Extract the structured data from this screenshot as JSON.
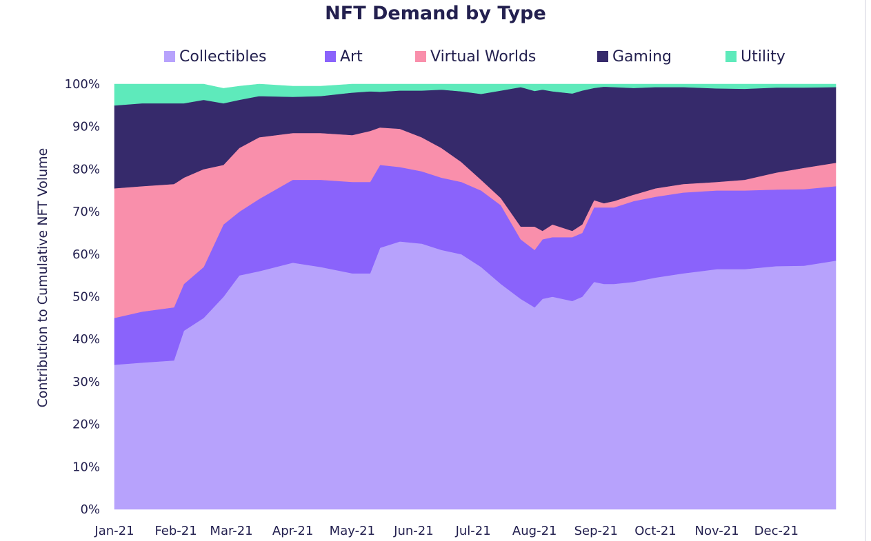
{
  "chart_data": {
    "type": "area",
    "stacked": true,
    "normalized_percent": true,
    "title": "NFT Demand by Type",
    "xlabel": "",
    "ylabel": "Contribution to Cumulative NFT Volume",
    "ylim": [
      0,
      100
    ],
    "y_ticks": [
      "0%",
      "10%",
      "20%",
      "30%",
      "40%",
      "50%",
      "60%",
      "70%",
      "80%",
      "90%",
      "100%"
    ],
    "x_tick_labels": [
      "Jan-21",
      "Feb-21",
      "Mar-21",
      "Apr-21",
      "May-21",
      "Jun-21",
      "Jul-21",
      "Aug-21",
      "Sep-21",
      "Oct-21",
      "Nov-21",
      "Dec-21"
    ],
    "legend_position": "top",
    "grid": false,
    "x": [
      "2021-01-01",
      "2021-01-15",
      "2021-01-31",
      "2021-02-05",
      "2021-02-15",
      "2021-02-25",
      "2021-03-05",
      "2021-03-15",
      "2021-04-01",
      "2021-04-15",
      "2021-05-01",
      "2021-05-10",
      "2021-05-15",
      "2021-05-25",
      "2021-06-05",
      "2021-06-15",
      "2021-06-25",
      "2021-07-05",
      "2021-07-15",
      "2021-07-25",
      "2021-08-01",
      "2021-08-05",
      "2021-08-10",
      "2021-08-20",
      "2021-08-25",
      "2021-08-31",
      "2021-09-05",
      "2021-09-10",
      "2021-09-20",
      "2021-10-01",
      "2021-10-15",
      "2021-11-01",
      "2021-11-15",
      "2021-12-01",
      "2021-12-15",
      "2021-12-31"
    ],
    "series": [
      {
        "name": "Collectibles",
        "color": "#b7a2fc",
        "values": [
          34,
          34.5,
          35,
          42,
          45,
          50,
          55,
          56,
          58,
          57,
          55.5,
          55.5,
          61.5,
          63,
          62.5,
          61,
          60,
          57,
          53,
          49.5,
          47.5,
          49.5,
          50,
          49,
          50,
          53.5,
          53,
          53,
          53.5,
          54.5,
          55.5,
          56.5,
          56.5,
          57.2,
          57.3,
          58.5
        ]
      },
      {
        "name": "Art",
        "color": "#8a63fb",
        "values": [
          11,
          12,
          12.5,
          11,
          12,
          17,
          15,
          17,
          19.5,
          20.5,
          21.5,
          21.5,
          19.5,
          17.5,
          17,
          17,
          17,
          18,
          18.5,
          14,
          13.5,
          14,
          14,
          15,
          15,
          17.5,
          18,
          18,
          19,
          19,
          19,
          18.5,
          18.5,
          18,
          18,
          17.5
        ]
      },
      {
        "name": "Virtual Worlds",
        "color": "#f98fab",
        "values": [
          30.5,
          29.5,
          29,
          25,
          23,
          14,
          15,
          14.5,
          11,
          11,
          11,
          12,
          8.8,
          9,
          8,
          7,
          4.7,
          2.5,
          1.7,
          3,
          5.5,
          2,
          3,
          1.5,
          2,
          1.7,
          1,
          1.5,
          1.5,
          2,
          2,
          2,
          2.5,
          4,
          5,
          5.5
        ]
      },
      {
        "name": "Gaming",
        "color": "#362a6b",
        "values": [
          19.5,
          19.5,
          19,
          17.5,
          16.3,
          14.5,
          11.3,
          9.7,
          8.5,
          8.7,
          10,
          9.3,
          8.4,
          9,
          11,
          13.7,
          16.6,
          20.2,
          25.3,
          32.8,
          31.9,
          33.2,
          31.3,
          32.3,
          31.5,
          26.4,
          27.4,
          26.8,
          25.1,
          23.8,
          22.8,
          22,
          21.4,
          20,
          18.9,
          17.8
        ]
      },
      {
        "name": "Utility",
        "color": "#5eeabb",
        "values": [
          5,
          4.5,
          4.5,
          4.5,
          3.7,
          3.5,
          3.2,
          2.8,
          2.5,
          2.3,
          2,
          1.7,
          1.8,
          1.5,
          1.5,
          1.3,
          1.7,
          2.3,
          1.5,
          0.7,
          1.6,
          1.3,
          1.7,
          2.2,
          1.5,
          0.9,
          0.6,
          0.7,
          0.9,
          0.7,
          0.7,
          1,
          1.1,
          0.8,
          0.8,
          0.7
        ]
      }
    ]
  }
}
